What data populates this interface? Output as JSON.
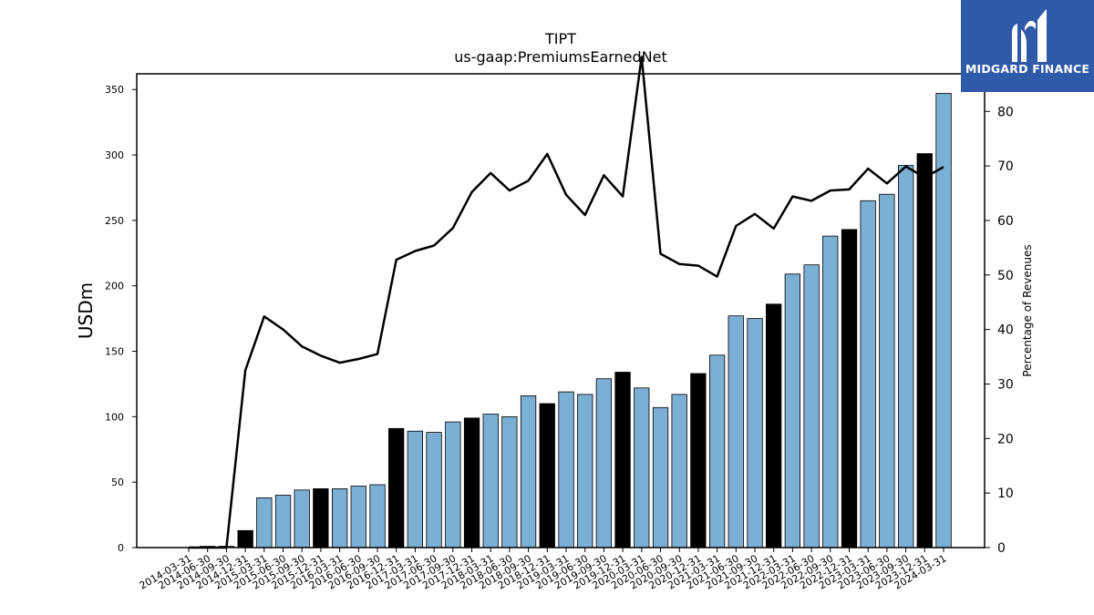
{
  "chart_data": {
    "type": "bar",
    "title": "TIPT",
    "subtitle": "us-gaap:PremiumsEarnedNet",
    "ylabel": "USDm",
    "y2label": "Percentage of Revenues",
    "ylim": [
      0,
      362
    ],
    "y2lim": [
      0,
      86.9
    ],
    "yticks": [
      0,
      50,
      100,
      150,
      200,
      250,
      300,
      350
    ],
    "y2ticks": [
      0,
      10,
      20,
      30,
      40,
      50,
      60,
      70,
      80
    ],
    "categories": [
      "2014-03-31",
      "2014-06-30",
      "2014-09-30",
      "2014-12-31",
      "2015-03-31",
      "2015-06-30",
      "2015-09-30",
      "2015-12-31",
      "2016-03-31",
      "2016-06-30",
      "2016-09-30",
      "2016-12-31",
      "2017-03-31",
      "2017-06-30",
      "2017-09-30",
      "2017-12-31",
      "2018-03-31",
      "2018-06-30",
      "2018-09-30",
      "2018-12-31",
      "2019-03-31",
      "2019-06-30",
      "2019-09-30",
      "2019-12-31",
      "2020-03-31",
      "2020-06-30",
      "2020-09-30",
      "2020-12-31",
      "2021-03-31",
      "2021-06-30",
      "2021-09-30",
      "2021-12-31",
      "2022-03-31",
      "2022-06-30",
      "2022-09-30",
      "2022-12-31",
      "2023-03-31",
      "2023-06-30",
      "2023-09-30",
      "2023-12-31",
      "2024-03-31"
    ],
    "series": [
      {
        "kind": "bar",
        "values": [
          0,
          1,
          1,
          13,
          38,
          40,
          44,
          45,
          45,
          47,
          48,
          91,
          89,
          88,
          96,
          99,
          102,
          100,
          116,
          110,
          119,
          117,
          129,
          134,
          122,
          107,
          117,
          133,
          147,
          177,
          175,
          186,
          209,
          216,
          238,
          243,
          265,
          270,
          292,
          301,
          347
        ],
        "highlight": [
          false,
          false,
          false,
          true,
          false,
          false,
          false,
          true,
          false,
          false,
          false,
          true,
          false,
          false,
          false,
          true,
          false,
          false,
          false,
          true,
          false,
          false,
          false,
          true,
          false,
          false,
          false,
          true,
          false,
          false,
          false,
          true,
          false,
          false,
          false,
          true,
          false,
          false,
          false,
          true,
          false
        ],
        "color": "#7bafd4",
        "highlight_color": "#000000"
      },
      {
        "kind": "line",
        "axis": "right",
        "values": [
          0,
          0,
          0,
          32.5,
          42.4,
          40,
          36.9,
          35.2,
          33.9,
          34.6,
          35.5,
          52.8,
          54.4,
          55.4,
          58.6,
          65.2,
          68.7,
          65.5,
          67.3,
          72.2,
          64.7,
          61,
          68.3,
          64.4,
          90,
          53.9,
          52,
          51.7,
          49.7,
          59,
          61.2,
          58.5,
          64.4,
          63.6,
          65.5,
          65.7,
          69.5,
          66.8,
          69.9,
          67.9,
          69.8
        ],
        "color": "#000000"
      }
    ]
  },
  "logo": {
    "text": "MIDGARD FINANCE",
    "color": "#2f5aa8"
  }
}
